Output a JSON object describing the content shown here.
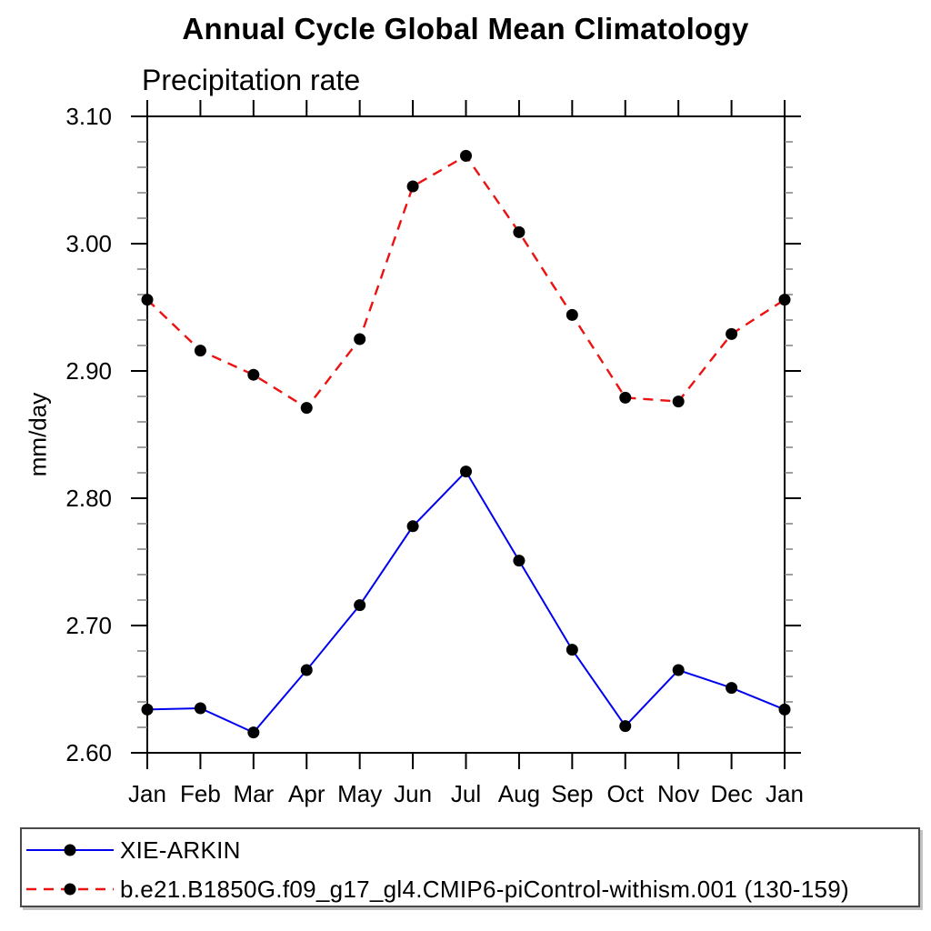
{
  "header": {
    "title": "Annual Cycle Global Mean Climatology",
    "subtitle": "Precipitation rate"
  },
  "chart_data": {
    "type": "line",
    "title": "Annual Cycle Global Mean Climatology",
    "subtitle": "Precipitation rate",
    "xlabel": "",
    "ylabel": "mm/day",
    "categories": [
      "Jan",
      "Feb",
      "Mar",
      "Apr",
      "May",
      "Jun",
      "Jul",
      "Aug",
      "Sep",
      "Oct",
      "Nov",
      "Dec",
      "Jan"
    ],
    "ylim": [
      2.6,
      3.1
    ],
    "yticks": [
      2.6,
      2.7,
      2.8,
      2.9,
      3.0,
      3.1
    ],
    "ytick_labels": [
      "2.60",
      "2.70",
      "2.80",
      "2.90",
      "3.00",
      "3.10"
    ],
    "minor_tick_step": 0.02,
    "grid": false,
    "legend_position": "bottom",
    "axis_color": "#000000",
    "minor_tick_color": "#808080",
    "marker": "filled-circle",
    "marker_color": "#000000",
    "series": [
      {
        "name": "XIE-ARKIN",
        "color": "#0000f0",
        "style": "solid",
        "values": [
          2.634,
          2.635,
          2.616,
          2.665,
          2.716,
          2.778,
          2.821,
          2.751,
          2.681,
          2.621,
          2.665,
          2.651,
          2.634
        ]
      },
      {
        "name": "b.e21.B1850G.f09_g17_gl4.CMIP6-piControl-withism.001 (130-159)",
        "color": "#ec1212",
        "style": "dashed",
        "values": [
          2.956,
          2.916,
          2.897,
          2.871,
          2.925,
          3.045,
          3.069,
          3.009,
          2.944,
          2.879,
          2.876,
          2.929,
          2.956
        ]
      }
    ]
  }
}
